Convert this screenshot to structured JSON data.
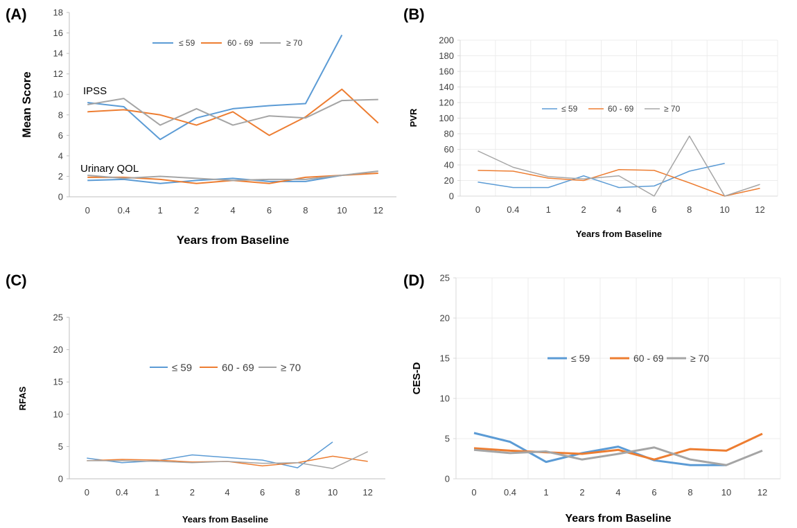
{
  "chart_data": [
    {
      "panel": "(A)",
      "type": "line",
      "categories": [
        "0",
        "0.4",
        "1",
        "2",
        "4",
        "6",
        "8",
        "10",
        "12"
      ],
      "xlabel": "Years from Baseline",
      "ylabel": "Mean Score",
      "ylim": [
        0,
        18
      ],
      "yticks": [
        0,
        2,
        4,
        6,
        8,
        10,
        12,
        14,
        16,
        18
      ],
      "grid": false,
      "legend": "top",
      "annotations": [
        "IPSS",
        "Urinary QOL"
      ],
      "series": [
        {
          "name": "< 59",
          "group": "IPSS",
          "color": "#5b9bd5",
          "values": [
            9.2,
            8.8,
            5.6,
            7.7,
            8.6,
            8.9,
            9.1,
            15.8,
            null
          ]
        },
        {
          "name": "60 - 69",
          "group": "IPSS",
          "color": "#ed7d31",
          "values": [
            8.3,
            8.5,
            8.0,
            7.0,
            8.3,
            6.0,
            7.8,
            10.5,
            7.2
          ]
        },
        {
          "name": "> 70",
          "group": "IPSS",
          "color": "#a5a5a5",
          "values": [
            9.0,
            9.6,
            7.0,
            8.6,
            7.0,
            7.9,
            7.7,
            9.4,
            9.5
          ]
        },
        {
          "name": "< 59",
          "group": "Urinary QOL",
          "color": "#5b9bd5",
          "values": [
            1.6,
            1.7,
            1.3,
            1.6,
            1.8,
            1.5,
            1.5,
            2.1,
            null
          ]
        },
        {
          "name": "60 - 69",
          "group": "Urinary QOL",
          "color": "#ed7d31",
          "values": [
            1.9,
            1.9,
            1.7,
            1.3,
            1.6,
            1.3,
            1.9,
            2.1,
            2.3
          ]
        },
        {
          "name": "> 70",
          "group": "Urinary QOL",
          "color": "#a5a5a5",
          "values": [
            2.1,
            1.8,
            2.0,
            1.8,
            1.6,
            1.7,
            1.7,
            2.1,
            2.5
          ]
        }
      ]
    },
    {
      "panel": "(B)",
      "type": "line",
      "categories": [
        "0",
        "0.4",
        "1",
        "2",
        "4",
        "6",
        "8",
        "10",
        "12"
      ],
      "xlabel": "Years from Baseline",
      "ylabel": "PVR",
      "ylim": [
        0,
        200
      ],
      "yticks": [
        0,
        20,
        40,
        60,
        80,
        100,
        120,
        140,
        160,
        180,
        200
      ],
      "grid": true,
      "legend": "middle",
      "series": [
        {
          "name": "< 59",
          "color": "#5b9bd5",
          "values": [
            18,
            11,
            11,
            26,
            11,
            13,
            32,
            42,
            null
          ]
        },
        {
          "name": "60 - 69",
          "color": "#ed7d31",
          "values": [
            33,
            32,
            23,
            20,
            34,
            33,
            17,
            0,
            10
          ]
        },
        {
          "name": "> 70",
          "color": "#a5a5a5",
          "values": [
            58,
            37,
            25,
            22,
            26,
            0,
            77,
            0,
            15
          ]
        }
      ]
    },
    {
      "panel": "(C)",
      "type": "line",
      "categories": [
        "0",
        "0.4",
        "1",
        "2",
        "4",
        "6",
        "8",
        "10",
        "12"
      ],
      "xlabel": "Years from Baseline",
      "ylabel": "RFAS",
      "ylim": [
        0,
        25
      ],
      "yticks": [
        0,
        5,
        10,
        15,
        20,
        25
      ],
      "grid": false,
      "legend": "middle",
      "series": [
        {
          "name": "< 59",
          "color": "#5b9bd5",
          "values": [
            3.2,
            2.5,
            2.8,
            3.7,
            3.3,
            2.9,
            1.7,
            5.7,
            null
          ]
        },
        {
          "name": "60 - 69",
          "color": "#ed7d31",
          "values": [
            2.8,
            3.0,
            2.9,
            2.6,
            2.7,
            2.0,
            2.5,
            3.5,
            2.7
          ]
        },
        {
          "name": "> 70",
          "color": "#a5a5a5",
          "values": [
            2.8,
            2.8,
            2.7,
            2.5,
            2.7,
            2.4,
            2.5,
            1.6,
            4.2
          ]
        }
      ]
    },
    {
      "panel": "(D)",
      "type": "line",
      "categories": [
        "0",
        "0.4",
        "1",
        "2",
        "4",
        "6",
        "8",
        "10",
        "12"
      ],
      "xlabel": "Years from Baseline",
      "ylabel": "CES-D",
      "ylim": [
        0,
        25
      ],
      "yticks": [
        0,
        5,
        10,
        15,
        20,
        25
      ],
      "grid": true,
      "legend": "middle",
      "series": [
        {
          "name": "< 59",
          "color": "#5b9bd5",
          "values": [
            5.7,
            4.6,
            2.1,
            3.2,
            4.0,
            2.3,
            1.7,
            1.7,
            null
          ]
        },
        {
          "name": "60 - 69",
          "color": "#ed7d31",
          "values": [
            3.8,
            3.5,
            3.3,
            3.1,
            3.6,
            2.4,
            3.7,
            3.5,
            5.6
          ]
        },
        {
          "name": "> 70",
          "color": "#a5a5a5",
          "values": [
            3.6,
            3.2,
            3.4,
            2.4,
            3.1,
            3.9,
            2.4,
            1.7,
            3.5
          ]
        }
      ]
    }
  ]
}
